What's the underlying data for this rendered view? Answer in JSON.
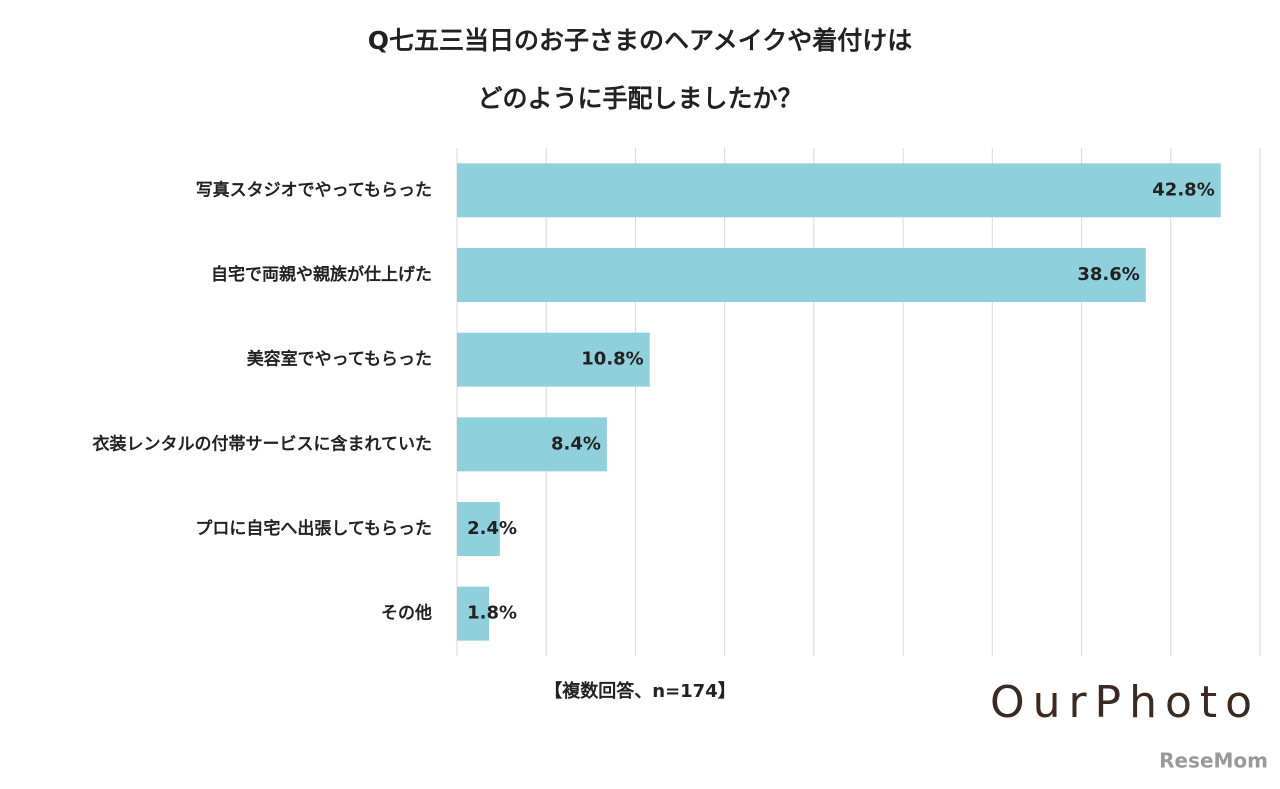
{
  "chart_data": {
    "type": "bar",
    "orientation": "horizontal",
    "title": [
      "Q七五三当日のお子さまのヘアメイクや着付けは",
      "どのように手配しましたか？"
    ],
    "categories": [
      "写真スタジオでやってもらった",
      "自宅で両親や親族が仕上げた",
      "美容室でやってもらった",
      "衣装レンタルの付帯サービスに含まれていた",
      "プロに自宅へ出張してもらった",
      "その他"
    ],
    "values": [
      42.8,
      38.6,
      10.8,
      8.4,
      2.4,
      1.8
    ],
    "value_labels": [
      "42.8%",
      "38.6%",
      "10.8%",
      "8.4%",
      "2.4%",
      "1.8%"
    ],
    "color": "#8fd0dc",
    "xlim": [
      0,
      45
    ],
    "xticks": [
      0,
      5,
      10,
      15,
      20,
      25,
      30,
      35,
      40,
      45
    ],
    "grid": true,
    "note": "【複数回答、n=174】"
  },
  "logos": [
    "OurPhoto",
    "ReseMom"
  ]
}
